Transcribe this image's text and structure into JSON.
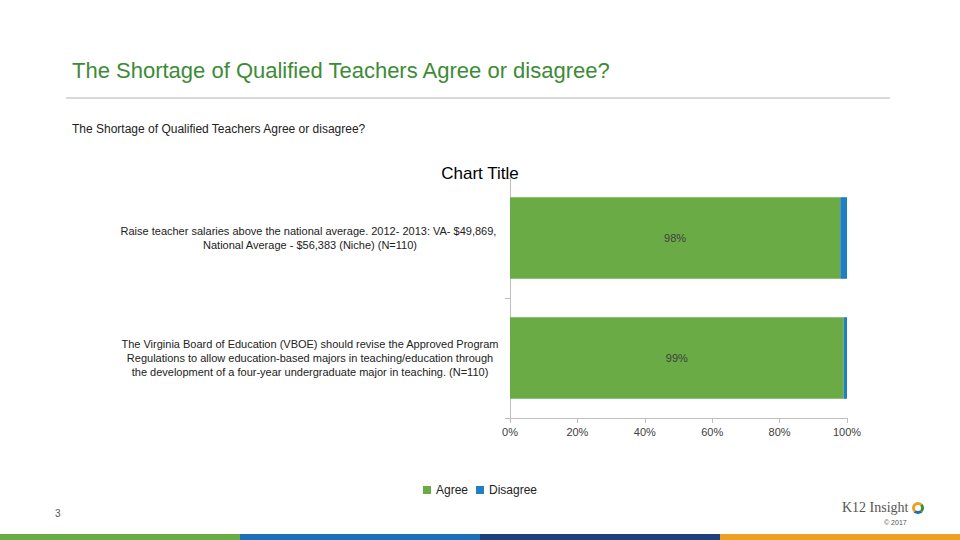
{
  "header": {
    "title": "The Shortage of Qualified Teachers Agree or disagree?",
    "subtitle": "The Shortage of Qualified Teachers Agree or disagree?"
  },
  "chart_data": {
    "type": "bar",
    "title": "Chart Title",
    "orientation": "horizontal",
    "stacked": true,
    "grid": false,
    "legend": "bottom",
    "categories": [
      "Raise teacher salaries above the national average. 2012- 2013: VA- $49,869, National Average - $56,383 (Niche) (N=110)",
      "The Virginia Board of Education (VBOE) should revise the Approved Program Regulations to allow education-based majors in teaching/education through the development of a four-year undergraduate major in teaching. (N=110)"
    ],
    "series": [
      {
        "name": "Agree",
        "color": "#6aab46",
        "values": [
          98,
          99
        ],
        "data_labels": true,
        "value_labels": [
          "98%",
          "99%"
        ]
      },
      {
        "name": "Disagree",
        "color": "#1f7fc1",
        "values": [
          2,
          1
        ]
      }
    ],
    "xlim": [
      0,
      100
    ],
    "xticks": [
      {
        "value": 0,
        "label": "0%"
      },
      {
        "value": 20,
        "label": "20%"
      },
      {
        "value": 40,
        "label": "40%"
      },
      {
        "value": 60,
        "label": "60%"
      },
      {
        "value": 80,
        "label": "80%"
      },
      {
        "value": 100,
        "label": "100%"
      }
    ]
  },
  "footer": {
    "page": "3",
    "logo": "K12 Insight",
    "copyright": "© 2017"
  }
}
